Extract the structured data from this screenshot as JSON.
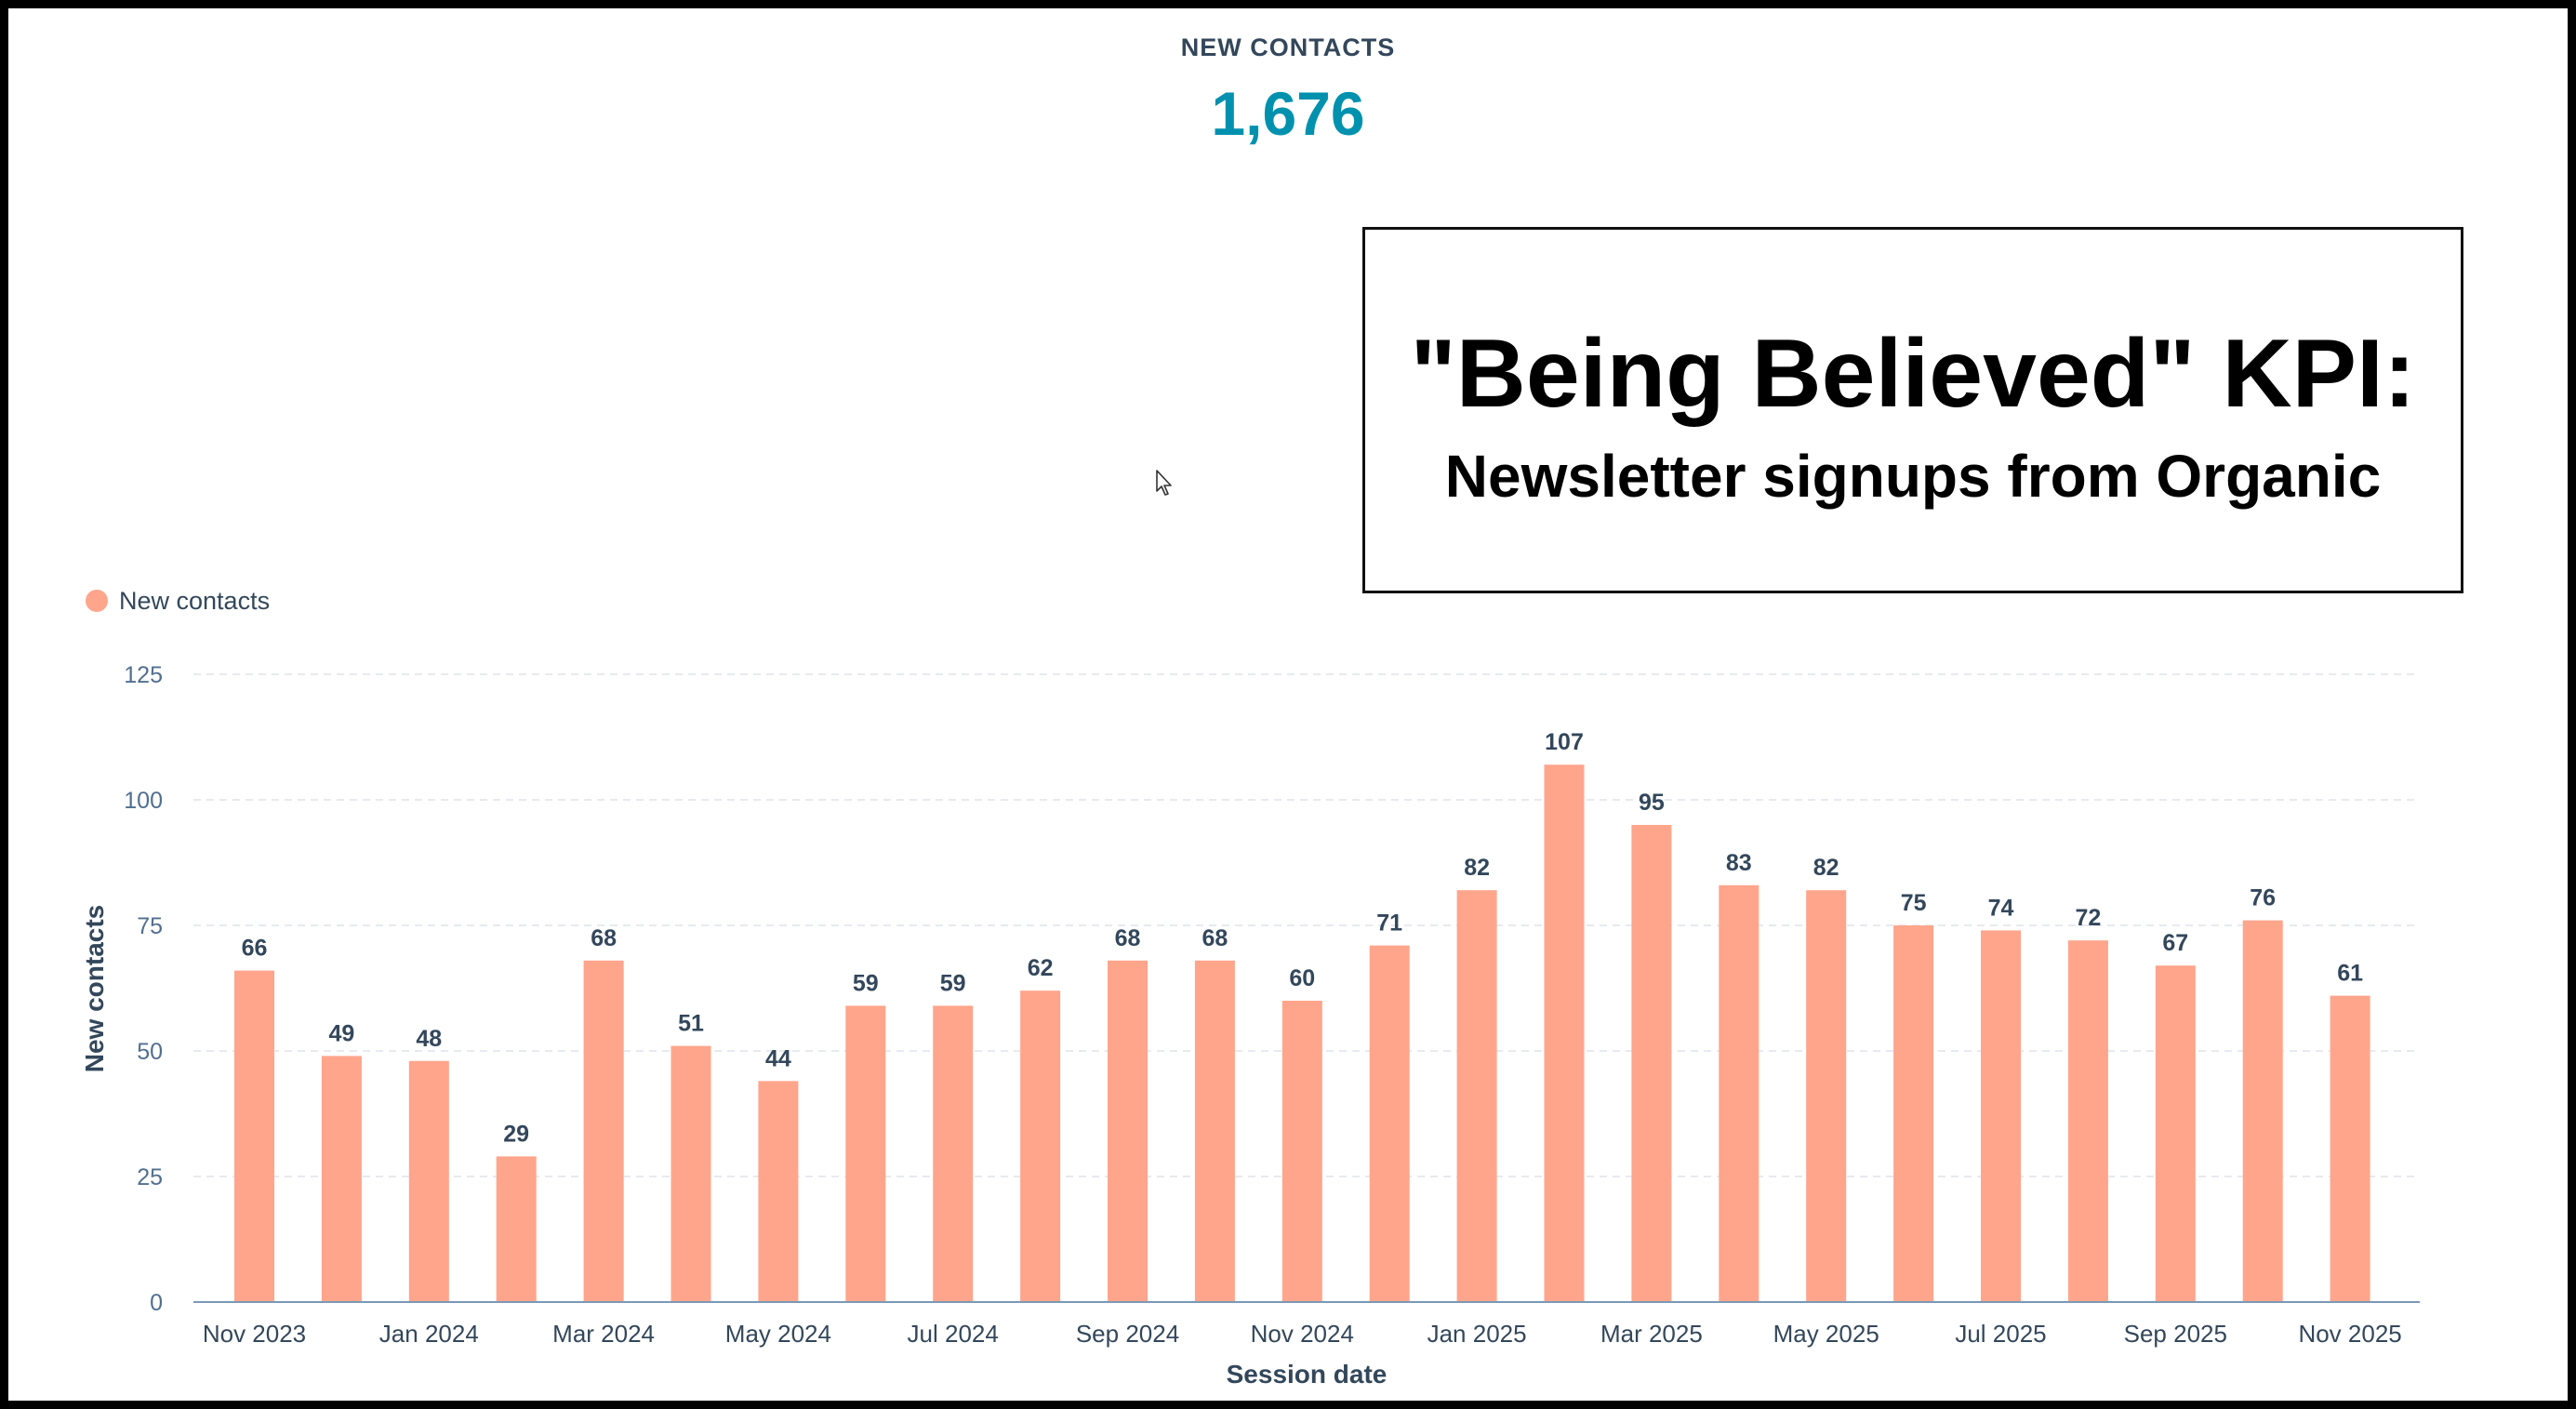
{
  "header": {
    "kpi_label": "NEW CONTACTS",
    "kpi_value": "1,676"
  },
  "callout": {
    "title": "\"Being Believed\" KPI:",
    "subtitle": "Newsletter signups from Organic"
  },
  "cursor": {
    "icon": "mouse-pointer-icon"
  },
  "colors": {
    "bar": "#ffa58c",
    "kpi_value": "#0091ae",
    "text": "#33475b",
    "tick_text": "#516f90",
    "grid": "#dfe3eb",
    "axis": "#7c98b6"
  },
  "chart_data": {
    "type": "bar",
    "title": "",
    "xlabel": "Session date",
    "ylabel": "New contacts",
    "ylim": [
      0,
      125
    ],
    "yticks": [
      0,
      25,
      50,
      75,
      100,
      125
    ],
    "grid": true,
    "legend": {
      "placement": "top-left",
      "entries": [
        "New contacts"
      ]
    },
    "categories": [
      "Nov 2023",
      "Dec 2023",
      "Jan 2024",
      "Feb 2024",
      "Mar 2024",
      "Apr 2024",
      "May 2024",
      "Jun 2024",
      "Jul 2024",
      "Aug 2024",
      "Sep 2024",
      "Oct 2024",
      "Nov 2024",
      "Dec 2024",
      "Jan 2025",
      "Feb 2025",
      "Mar 2025",
      "Apr 2025",
      "May 2025",
      "Jun 2025",
      "Jul 2025",
      "Aug 2025",
      "Sep 2025",
      "Oct 2025",
      "Nov 2025"
    ],
    "xtick_labels": [
      "Nov 2023",
      "",
      "Jan 2024",
      "",
      "Mar 2024",
      "",
      "May 2024",
      "",
      "Jul 2024",
      "",
      "Sep 2024",
      "",
      "Nov 2024",
      "",
      "Jan 2025",
      "",
      "Mar 2025",
      "",
      "May 2025",
      "",
      "Jul 2025",
      "",
      "Sep 2025",
      "",
      "Nov 2025"
    ],
    "series": [
      {
        "name": "New contacts",
        "values": [
          66,
          49,
          48,
          29,
          68,
          51,
          44,
          59,
          59,
          62,
          68,
          68,
          60,
          71,
          82,
          107,
          95,
          83,
          82,
          75,
          74,
          72,
          67,
          76,
          61
        ]
      }
    ]
  }
}
